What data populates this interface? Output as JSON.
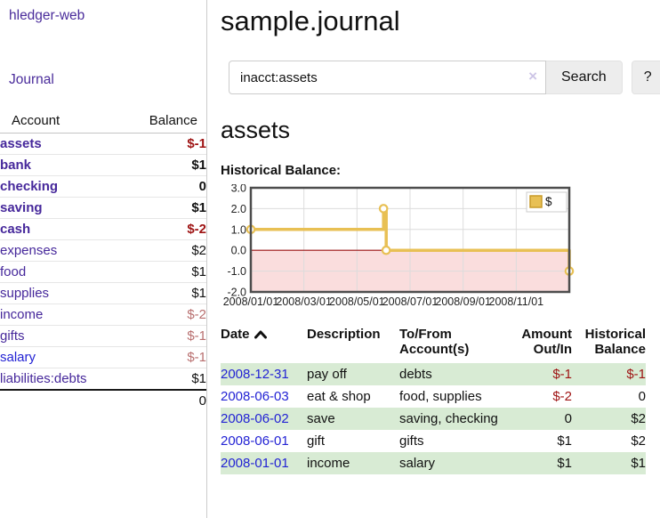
{
  "app": {
    "title": "hledger-web"
  },
  "sidebar": {
    "journal_link": "Journal",
    "accounts_table": {
      "headers": [
        "Account",
        "Balance"
      ],
      "rows": [
        {
          "name": "assets",
          "depth": 1,
          "bold": true,
          "balance": "$-1",
          "balance_class": "neg-strong",
          "link_class": ""
        },
        {
          "name": "bank",
          "depth": 2,
          "bold": true,
          "balance": "$1",
          "balance_class": "",
          "link_class": ""
        },
        {
          "name": "checking",
          "depth": 3,
          "bold": true,
          "balance": "0",
          "balance_class": "",
          "link_class": ""
        },
        {
          "name": "saving",
          "depth": 3,
          "bold": true,
          "balance": "$1",
          "balance_class": "",
          "link_class": ""
        },
        {
          "name": "cash",
          "depth": 2,
          "bold": true,
          "balance": "$-2",
          "balance_class": "neg-strong",
          "link_class": ""
        },
        {
          "name": "expenses",
          "depth": 1,
          "bold": false,
          "balance": "$2",
          "balance_class": "",
          "link_class": ""
        },
        {
          "name": "food",
          "depth": 2,
          "bold": false,
          "balance": "$1",
          "balance_class": "",
          "link_class": ""
        },
        {
          "name": "supplies",
          "depth": 2,
          "bold": false,
          "balance": "$1",
          "balance_class": "",
          "link_class": ""
        },
        {
          "name": "income",
          "depth": 1,
          "bold": false,
          "balance": "$-2",
          "balance_class": "neg-muted",
          "link_class": ""
        },
        {
          "name": "gifts",
          "depth": 2,
          "bold": false,
          "balance": "$-1",
          "balance_class": "neg-muted",
          "link_class": ""
        },
        {
          "name": "salary",
          "depth": 2,
          "bold": false,
          "balance": "$-1",
          "balance_class": "neg-muted",
          "link_class": "blue"
        },
        {
          "name": "liabilities:debts",
          "depth": 1,
          "bold": false,
          "balance": "$1",
          "balance_class": "",
          "link_class": ""
        }
      ],
      "total": "0"
    }
  },
  "main": {
    "title": "sample.journal",
    "search": {
      "value": "inacct:assets",
      "clear_icon": "×",
      "button_label": "Search",
      "help_label": "?"
    },
    "account_heading": "assets",
    "chart_label": "Historical Balance:"
  },
  "chart_data": {
    "type": "line",
    "title": "Historical Balance",
    "series": [
      {
        "name": "$",
        "color": "#e8c054",
        "step_points": [
          [
            0,
            1
          ],
          [
            5,
            1
          ],
          [
            5,
            2
          ],
          [
            5.1,
            2
          ],
          [
            5.1,
            0
          ],
          [
            12,
            0
          ],
          [
            12,
            -1
          ]
        ],
        "markers": [
          [
            0,
            1
          ],
          [
            5,
            2
          ],
          [
            5.1,
            0
          ],
          [
            12,
            -1
          ]
        ]
      }
    ],
    "xlim": [
      0,
      12
    ],
    "ylim": [
      -2,
      3
    ],
    "x_ticks": [
      {
        "pos": 0,
        "label": "2008/01/01"
      },
      {
        "pos": 2,
        "label": "2008/03/01"
      },
      {
        "pos": 4,
        "label": "2008/05/01"
      },
      {
        "pos": 6,
        "label": "2008/07/01"
      },
      {
        "pos": 8,
        "label": "2008/09/01"
      },
      {
        "pos": 10,
        "label": "2008/11/01"
      }
    ],
    "y_ticks": [
      3.0,
      2.0,
      1.0,
      0.0,
      -1.0,
      -2.0
    ],
    "grid": true,
    "zero_line_color": "#991111",
    "negative_region_fill": "#fadddd",
    "border_color": "#4d4d4d",
    "grid_color": "#dcdcdc",
    "legend": {
      "label": "$",
      "swatch_color": "#e8c054",
      "swatch_border": "#c89b28",
      "position": "top-right"
    }
  },
  "register_table": {
    "headers": [
      {
        "label": "Date",
        "sorted": "asc"
      },
      {
        "label": "Description"
      },
      {
        "label": "To/From Account(s)"
      },
      {
        "label": "Amount Out/In"
      },
      {
        "label": "Historical Balance"
      }
    ],
    "rows": [
      {
        "date": "2008-12-31",
        "description": "pay off",
        "accounts": "debts",
        "amount": "$-1",
        "amount_class": "neg-strong",
        "balance": "$-1",
        "balance_class": "neg-strong",
        "shaded": true
      },
      {
        "date": "2008-06-03",
        "description": "eat & shop",
        "accounts": "food, supplies",
        "amount": "$-2",
        "amount_class": "neg-strong",
        "balance": "0",
        "balance_class": "",
        "shaded": false
      },
      {
        "date": "2008-06-02",
        "description": "save",
        "accounts": "saving, checking",
        "amount": "0",
        "amount_class": "",
        "balance": "$2",
        "balance_class": "",
        "shaded": true
      },
      {
        "date": "2008-06-01",
        "description": "gift",
        "accounts": "gifts",
        "amount": "$1",
        "amount_class": "",
        "balance": "$2",
        "balance_class": "",
        "shaded": false
      },
      {
        "date": "2008-01-01",
        "description": "income",
        "accounts": "salary",
        "amount": "$1",
        "amount_class": "",
        "balance": "$1",
        "balance_class": "",
        "shaded": true
      }
    ]
  },
  "colors": {
    "link_purple": "#4a2c9b",
    "account_purple": "#46289b",
    "link_blue": "#2323d4",
    "negative_strong": "#9e1313",
    "negative_muted": "#b86f6f",
    "row_stripe_green": "#d8ebd4",
    "chart_line_gold": "#e8c054",
    "chart_negative_pink": "#fadddd",
    "chart_zero_red": "#991111"
  }
}
